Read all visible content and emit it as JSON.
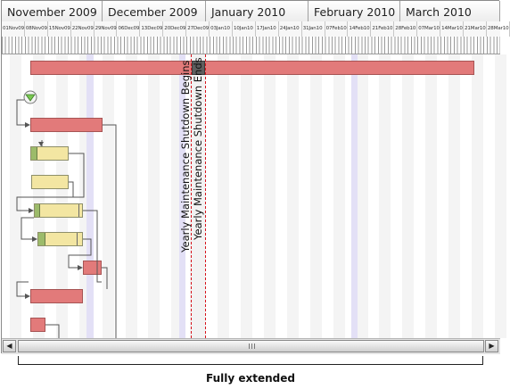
{
  "timeline": {
    "months": [
      "November 2009",
      "December 2009",
      "January 2010",
      "February 2010",
      "March 2010"
    ],
    "weeks": [
      "01Nov09",
      "08Nov09",
      "15Nov09",
      "22Nov09",
      "29Nov09",
      "06Dec09",
      "13Dec09",
      "20Dec09",
      "27Dec09",
      "03Jan10",
      "10Jan10",
      "17Jan10",
      "24Jan10",
      "31Jan10",
      "07Feb10",
      "14Feb10",
      "21Feb10",
      "28Feb10",
      "07Mar10",
      "14Mar10",
      "21Mar10",
      "28Mar10"
    ]
  },
  "markers": {
    "shutdown_begins": "Yearly Maintenance Shutdown Begins",
    "shutdown_ends": "Yearly Maintenance Shutdown Ends"
  },
  "tasks": [
    {
      "kind": "summary",
      "color": "red"
    },
    {
      "kind": "milestone-icon"
    },
    {
      "kind": "task",
      "color": "red"
    },
    {
      "kind": "task",
      "color": "yellow",
      "progress": 0.15
    },
    {
      "kind": "task",
      "color": "yellow",
      "progress": 0.0
    },
    {
      "kind": "task",
      "color": "yellow",
      "progress": 0.1
    },
    {
      "kind": "task",
      "color": "yellow",
      "progress": 0.15
    },
    {
      "kind": "task",
      "color": "red"
    },
    {
      "kind": "task",
      "color": "red"
    },
    {
      "kind": "task",
      "color": "red"
    }
  ],
  "scrollbar": {
    "left_arrow": "◀",
    "right_arrow": "▶"
  },
  "caption": "Fully extended",
  "colors": {
    "task_red": "#e27a7a",
    "task_yellow": "#f3e6a2",
    "progress_green": "#9cbb6a",
    "marker_red": "#d7141c",
    "holiday_purple": "#e3e0f6"
  }
}
